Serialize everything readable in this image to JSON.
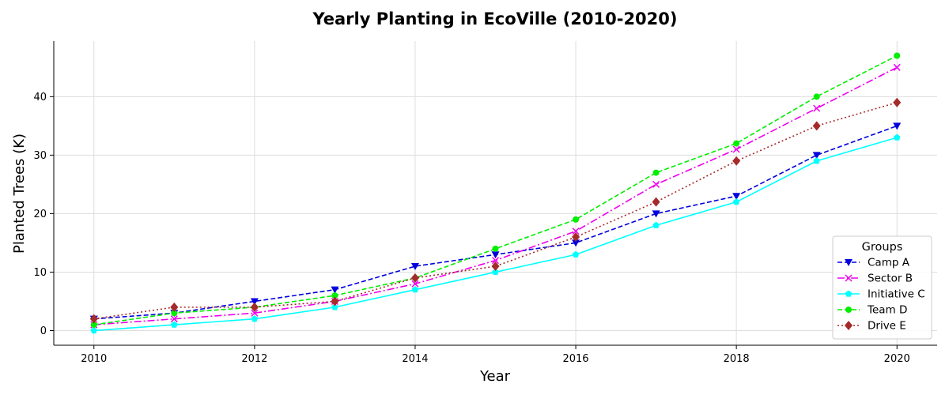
{
  "chart_data": {
    "type": "line",
    "title": "Yearly Planting in EcoVille (2010-2020)",
    "xlabel": "Year",
    "ylabel": "Planted Trees (K)",
    "x": [
      2010,
      2011,
      2012,
      2013,
      2014,
      2015,
      2016,
      2017,
      2018,
      2019,
      2020
    ],
    "xlim": [
      2009.5,
      2020.5
    ],
    "ylim": [
      -2.5,
      49.5
    ],
    "xticks": [
      2010,
      2012,
      2014,
      2016,
      2018,
      2020
    ],
    "yticks": [
      0,
      10,
      20,
      30,
      40
    ],
    "grid": true,
    "legend": {
      "title": "Groups",
      "placement": "lower-right"
    },
    "series": [
      {
        "name": "Camp A",
        "color": "#0000dd",
        "dash": "dashed",
        "marker": "triangle-down",
        "values": [
          2,
          3,
          5,
          7,
          11,
          13,
          15,
          20,
          23,
          30,
          35
        ]
      },
      {
        "name": "Sector B",
        "color": "#ee00ee",
        "dash": "dashdot",
        "marker": "x",
        "values": [
          1,
          2,
          3,
          5,
          8,
          12,
          17,
          25,
          31,
          38,
          45
        ]
      },
      {
        "name": "Initiative C",
        "color": "#00ffff",
        "dash": "solid",
        "marker": "pentagon",
        "values": [
          0,
          1,
          2,
          4,
          7,
          10,
          13,
          18,
          22,
          29,
          33
        ]
      },
      {
        "name": "Team D",
        "color": "#00ee00",
        "dash": "dashed",
        "marker": "circle",
        "values": [
          1,
          3,
          4,
          6,
          9,
          14,
          19,
          27,
          32,
          40,
          47
        ]
      },
      {
        "name": "Drive E",
        "color": "#a52a2a",
        "dash": "dotted",
        "marker": "diamond",
        "values": [
          2,
          4,
          4,
          5,
          9,
          11,
          16,
          22,
          29,
          35,
          39
        ]
      }
    ]
  }
}
